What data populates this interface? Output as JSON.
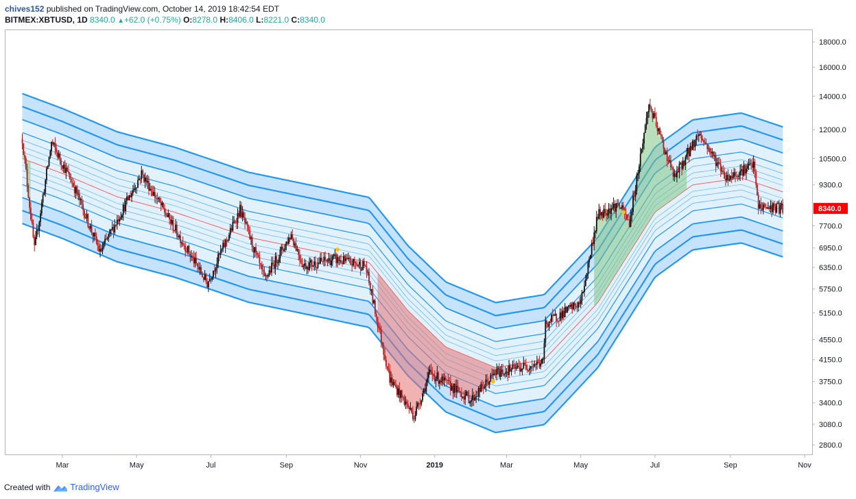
{
  "header": {
    "author": "chives152",
    "published_text": "published on TradingView.com, October 14, 2019 18:42:54 EDT",
    "symbol": "BITMEX:XBTUSD, 1D",
    "last": "8340.0",
    "change": "+62.0 (+0.75%)",
    "ohlc": [
      {
        "key": "O:",
        "value": "8278.0"
      },
      {
        "key": "H:",
        "value": "8406.0"
      },
      {
        "key": "L:",
        "value": "8221.0"
      },
      {
        "key": "C:",
        "value": "8340.0"
      }
    ]
  },
  "footer": {
    "created_with": "Created with",
    "brand": "TradingView"
  },
  "colors": {
    "band_fill": "#bbdefb",
    "band_line": "#2196f3",
    "mid_line": "#ef5350",
    "candle_up": "#111111",
    "candle_down": "#b71c1c",
    "price_tag": "#ff0000",
    "cloud_green": "#81c784",
    "cloud_red": "#e57373"
  },
  "chart_data": {
    "type": "candlestick",
    "log_scale": true,
    "y_ticks": [
      "18000.0",
      "16000.0",
      "14000.0",
      "12000.0",
      "10500.0",
      "9300.0",
      "7700.0",
      "6950.0",
      "6350.0",
      "5750.0",
      "5150.0",
      "4550.0",
      "4150.0",
      "3750.0",
      "3400.0",
      "3080.0",
      "2800.0"
    ],
    "x_ticks": [
      "Mar",
      "May",
      "Jul",
      "Sep",
      "Nov",
      "2019",
      "Mar",
      "May",
      "Jul",
      "Sep",
      "Nov"
    ],
    "last_price_label": "8340.0",
    "price_path": [
      [
        "2018-01-27",
        11500
      ],
      [
        "2018-02-06",
        6900
      ],
      [
        "2018-02-20",
        11300
      ],
      [
        "2018-03-10",
        9300
      ],
      [
        "2018-04-01",
        6800
      ],
      [
        "2018-05-05",
        9800
      ],
      [
        "2018-06-10",
        7000
      ],
      [
        "2018-06-28",
        5900
      ],
      [
        "2018-07-25",
        8300
      ],
      [
        "2018-08-14",
        6000
      ],
      [
        "2018-09-05",
        7400
      ],
      [
        "2018-09-15",
        6400
      ],
      [
        "2018-10-10",
        6600
      ],
      [
        "2018-11-05",
        6400
      ],
      [
        "2018-11-25",
        3800
      ],
      [
        "2018-12-15",
        3200
      ],
      [
        "2018-12-28",
        3900
      ],
      [
        "2019-01-31",
        3450
      ],
      [
        "2019-02-20",
        3900
      ],
      [
        "2019-03-31",
        4100
      ],
      [
        "2019-04-02",
        4900
      ],
      [
        "2019-05-01",
        5400
      ],
      [
        "2019-05-15",
        8100
      ],
      [
        "2019-06-01",
        8500
      ],
      [
        "2019-06-10",
        7800
      ],
      [
        "2019-06-26",
        13500
      ],
      [
        "2019-07-17",
        9600
      ],
      [
        "2019-08-06",
        11800
      ],
      [
        "2019-08-29",
        9600
      ],
      [
        "2019-09-20",
        10200
      ],
      [
        "2019-09-24",
        8400
      ],
      [
        "2019-10-14",
        8340
      ]
    ],
    "band_center": [
      [
        "2018-01-27",
        10500
      ],
      [
        "2018-03-01",
        9800
      ],
      [
        "2018-04-15",
        8800
      ],
      [
        "2018-06-01",
        8200
      ],
      [
        "2018-08-01",
        7300
      ],
      [
        "2018-10-01",
        6800
      ],
      [
        "2018-11-08",
        6500
      ],
      [
        "2018-12-10",
        5200
      ],
      [
        "2019-01-10",
        4400
      ],
      [
        "2019-02-20",
        4000
      ],
      [
        "2019-04-01",
        4150
      ],
      [
        "2019-05-15",
        5400
      ],
      [
        "2019-07-01",
        8200
      ],
      [
        "2019-08-01",
        9300
      ],
      [
        "2019-09-10",
        9600
      ],
      [
        "2019-10-14",
        9000
      ]
    ],
    "markers": [
      {
        "date": "2018-10-13",
        "price": 6900
      },
      {
        "date": "2019-02-18",
        "price": 3750
      },
      {
        "date": "2019-06-05",
        "price": 8200
      }
    ]
  }
}
